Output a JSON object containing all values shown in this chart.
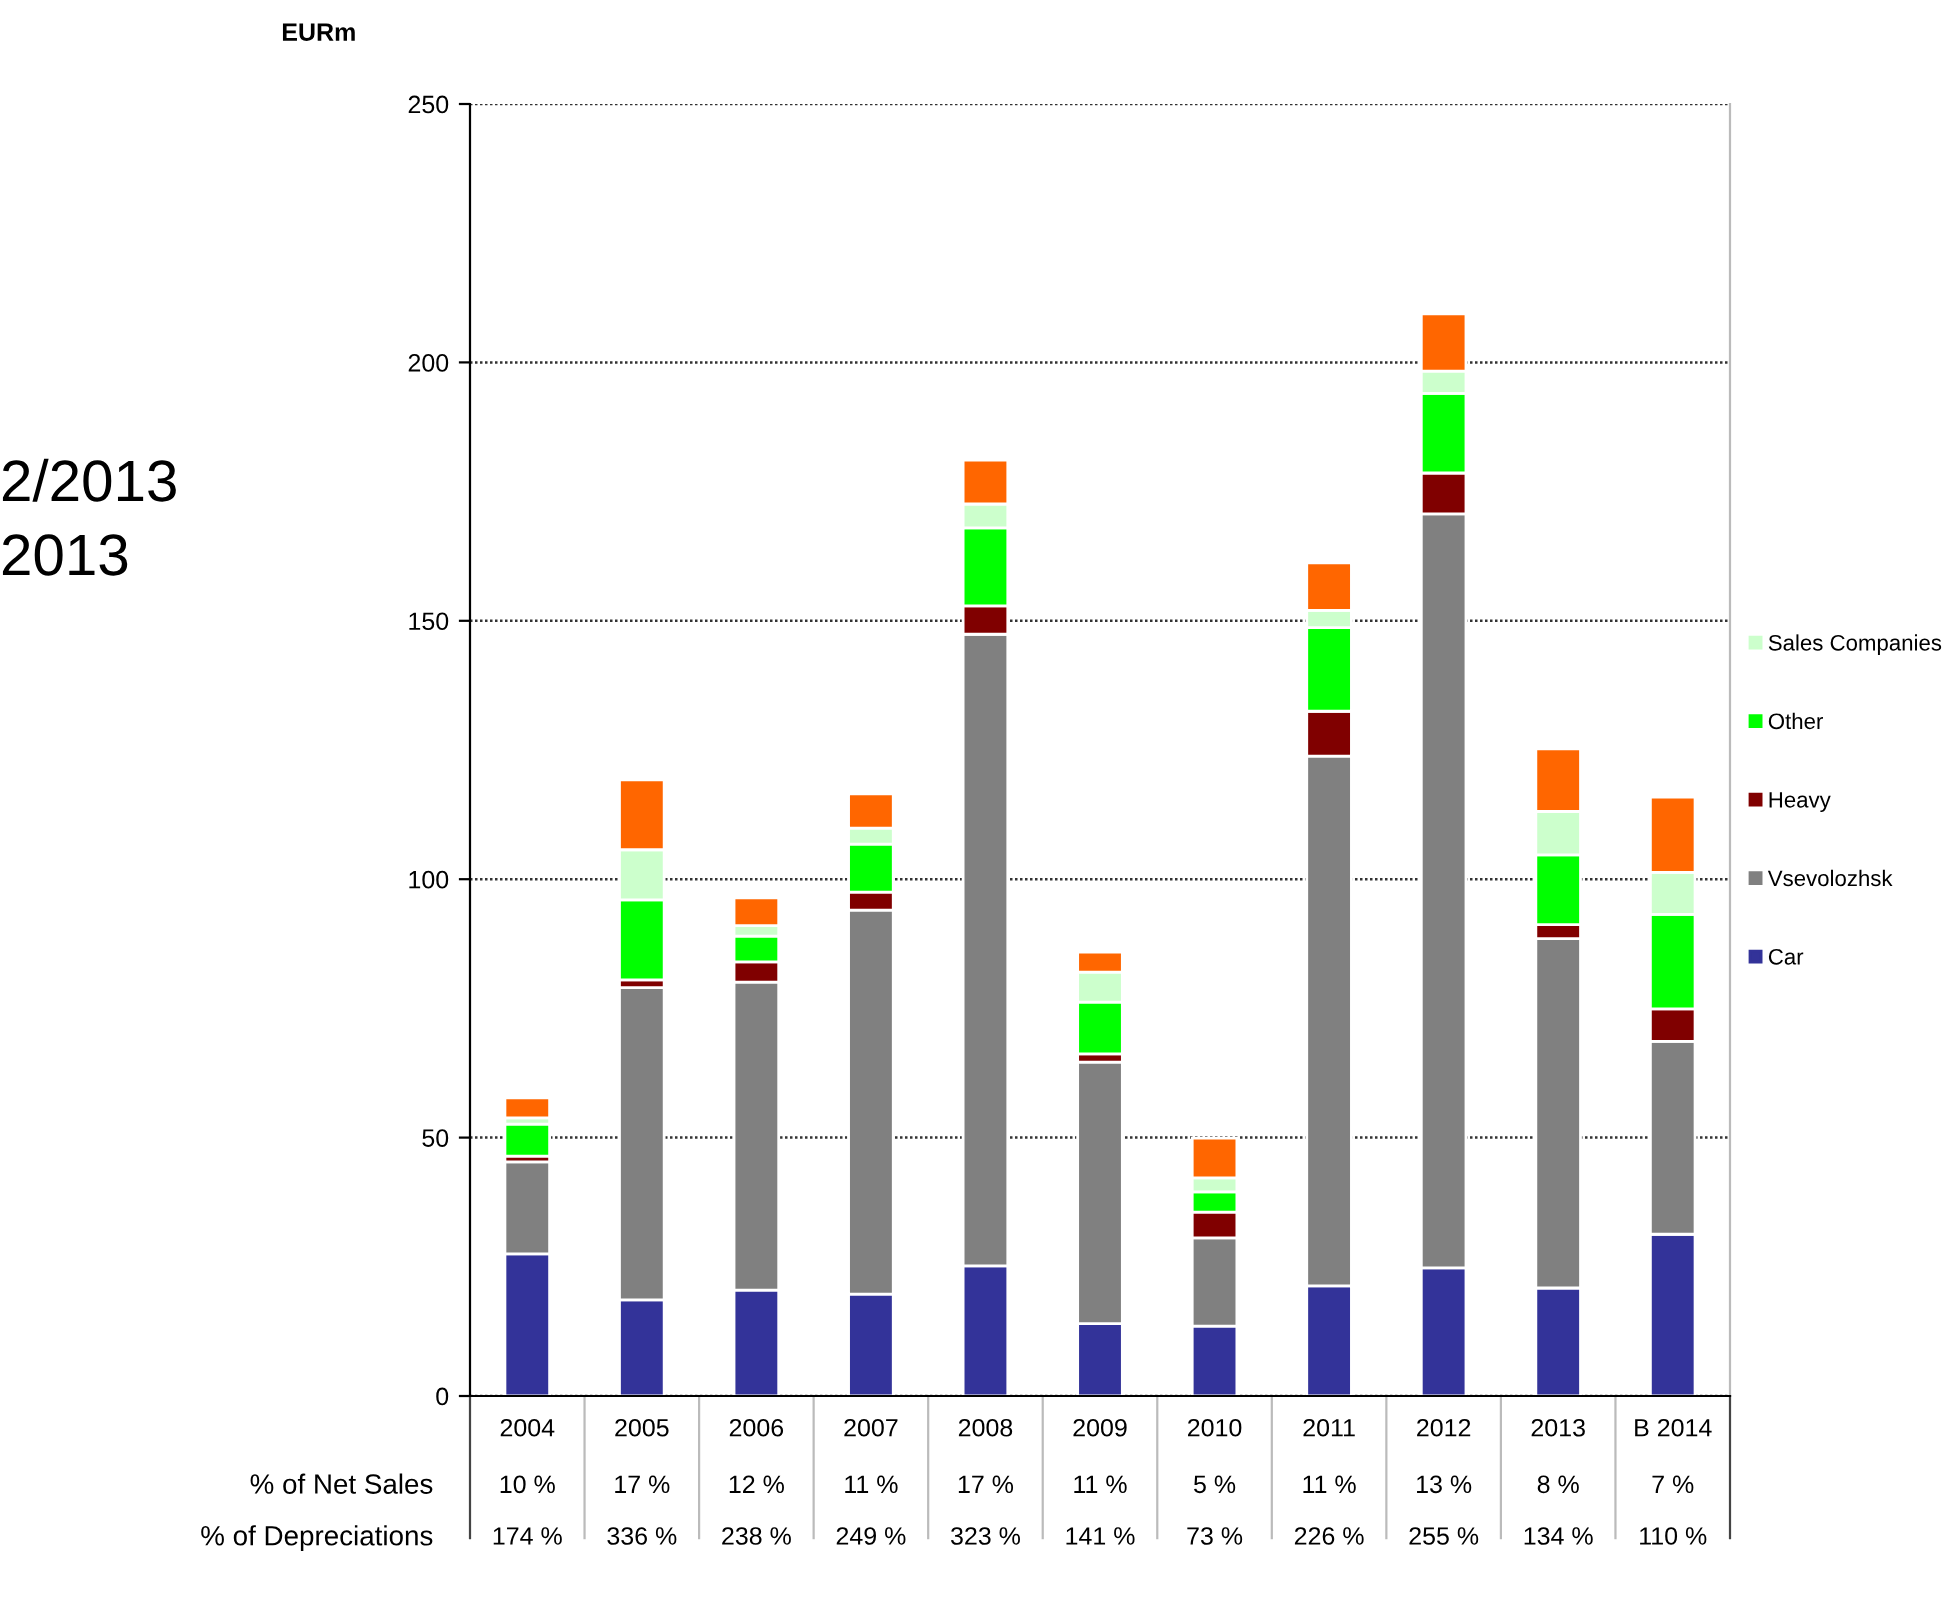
{
  "chart_data": {
    "type": "bar",
    "stacked": true,
    "ylabel": "EURm",
    "categories": [
      "2004",
      "2005",
      "2006",
      "2007",
      "2008",
      "2009",
      "2010",
      "2011",
      "2012",
      "2013",
      "B 2014"
    ],
    "series": [
      {
        "name": "Car",
        "color": "#333399",
        "values": [
          27.5,
          18.6,
          20.5,
          19.7,
          25.2,
          14.0,
          13.5,
          21.3,
          24.8,
          20.9,
          31.3
        ]
      },
      {
        "name": "Vsevolozhsk",
        "color": "#808080",
        "values": [
          17.8,
          60.4,
          59.6,
          74.3,
          122.2,
          50.6,
          17.1,
          102.5,
          145.9,
          67.6,
          37.3
        ]
      },
      {
        "name": "Heavy",
        "color": "#800000",
        "values": [
          1.1,
          1.5,
          3.9,
          3.5,
          5.5,
          1.6,
          5.0,
          8.7,
          7.9,
          2.7,
          6.3
        ]
      },
      {
        "name": "Other",
        "color": "#00ff00",
        "values": [
          6.2,
          15.5,
          5.0,
          9.3,
          15.1,
          10.0,
          3.9,
          16.2,
          15.4,
          13.5,
          18.3
        ]
      },
      {
        "name": "Sales Companies",
        "color": "#ccffcc",
        "values": [
          1.2,
          9.7,
          2.0,
          3.1,
          4.6,
          5.8,
          2.7,
          3.3,
          4.3,
          8.4,
          8.1
        ]
      },
      {
        "color": "#ff6600",
        "values": [
          3.9,
          13.5,
          5.4,
          6.6,
          8.5,
          3.9,
          7.7,
          9.2,
          11.1,
          12.1,
          14.6
        ]
      }
    ],
    "ylim": [
      0,
      250
    ],
    "yticks": [
      0,
      50,
      100,
      150,
      200,
      250
    ],
    "grid": "y",
    "legend": "right",
    "annotations": [
      "2/2013",
      "2013",
      "% of Net Sales",
      "10 %",
      "17 %",
      "12 %",
      "11 %",
      "17 %",
      "11 %",
      "5 %",
      "11 %",
      "13 %",
      "8 %",
      "7 %",
      "% of Depreciations",
      "174 %",
      "336 %",
      "238 %",
      "249 %",
      "323 %",
      "141 %",
      "73 %",
      "226 %",
      "255 %",
      "134 %",
      "110 %"
    ]
  }
}
